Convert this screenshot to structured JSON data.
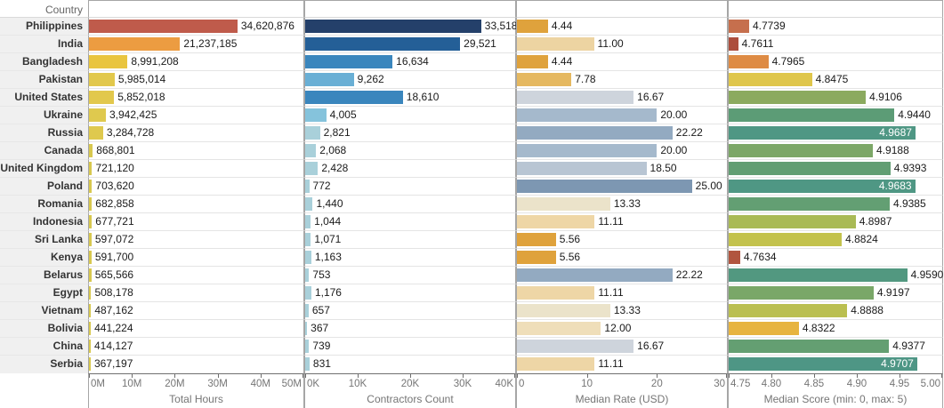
{
  "header": {
    "country_label": "Country"
  },
  "chart_data": {
    "type": "bar",
    "orientation": "horizontal",
    "grid": false,
    "legend": "none",
    "categories": [
      "Philippines",
      "India",
      "Bangladesh",
      "Pakistan",
      "United States",
      "Ukraine",
      "Russia",
      "Canada",
      "United Kingdom",
      "Poland",
      "Romania",
      "Indonesia",
      "Sri Lanka",
      "Kenya",
      "Belarus",
      "Egypt",
      "Vietnam",
      "Bolivia",
      "China",
      "Serbia"
    ],
    "series": [
      {
        "key": "total-hours",
        "name": "Total Hours",
        "axis_title": "Total Hours",
        "axis": {
          "min": 0,
          "max": 50000000,
          "ticks": [
            "0M",
            "10M",
            "20M",
            "30M",
            "40M",
            "50M"
          ]
        },
        "values": [
          34620876,
          21237185,
          8991208,
          5985014,
          5852018,
          3942425,
          3284728,
          868801,
          721120,
          703620,
          682858,
          677721,
          597072,
          591700,
          565566,
          508178,
          487162,
          441224,
          414127,
          367197
        ],
        "labels": [
          "34,620,876",
          "21,237,185",
          "8,991,208",
          "5,985,014",
          "5,852,018",
          "3,942,425",
          "3,284,728",
          "868,801",
          "721,120",
          "703,620",
          "682,858",
          "677,721",
          "597,072",
          "591,700",
          "565,566",
          "508,178",
          "487,162",
          "441,224",
          "414,127",
          "367,197"
        ],
        "colors": [
          "#BF5B4B",
          "#EC9C41",
          "#E9C53F",
          "#E2C84C",
          "#E2C84C",
          "#DFC94E",
          "#DFC94E",
          "#D8C84F",
          "#D8C84F",
          "#D8C84F",
          "#D8C84F",
          "#D8C84F",
          "#D8C84F",
          "#D8C84F",
          "#D8C84F",
          "#D8C84F",
          "#D8C84F",
          "#D8C84F",
          "#D8C84F",
          "#D8C84F"
        ],
        "label_inside": [
          false,
          false,
          false,
          false,
          false,
          false,
          false,
          false,
          false,
          false,
          false,
          false,
          false,
          false,
          false,
          false,
          false,
          false,
          false,
          false
        ]
      },
      {
        "key": "contractors-count",
        "name": "Contractors Count",
        "axis_title": "Contractors Count",
        "axis": {
          "min": 0,
          "max": 40000,
          "ticks": [
            "0K",
            "10K",
            "20K",
            "30K",
            "40K"
          ]
        },
        "values": [
          33518,
          29521,
          16634,
          9262,
          18610,
          4005,
          2821,
          2068,
          2428,
          772,
          1440,
          1044,
          1071,
          1163,
          753,
          1176,
          657,
          367,
          739,
          831
        ],
        "labels": [
          "33,518",
          "29,521",
          "16,634",
          "9,262",
          "18,610",
          "4,005",
          "2,821",
          "2,068",
          "2,428",
          "772",
          "1,440",
          "1,044",
          "1,071",
          "1,163",
          "753",
          "1,176",
          "657",
          "367",
          "739",
          "831"
        ],
        "colors": [
          "#24406A",
          "#245F97",
          "#3A86BD",
          "#69AFD5",
          "#3A86BD",
          "#85C3DC",
          "#A9D0DA",
          "#A9D0DA",
          "#A9D0DA",
          "#A9D0DA",
          "#A9D0DA",
          "#A9D0DA",
          "#A9D0DA",
          "#A9D0DA",
          "#A9D0DA",
          "#A9D0DA",
          "#A9D0DA",
          "#A9D0DA",
          "#A9D0DA",
          "#A9D0DA"
        ],
        "label_inside": [
          false,
          false,
          false,
          false,
          false,
          false,
          false,
          false,
          false,
          false,
          false,
          false,
          false,
          false,
          false,
          false,
          false,
          false,
          false,
          false
        ]
      },
      {
        "key": "median-rate",
        "name": "Median Rate (USD)",
        "axis_title": "Median Rate (USD)",
        "axis": {
          "min": 0,
          "max": 30,
          "ticks": [
            "0",
            "10",
            "20",
            "30"
          ]
        },
        "values": [
          4.44,
          11.0,
          4.44,
          7.78,
          16.67,
          20.0,
          22.22,
          20.0,
          18.5,
          25.0,
          13.33,
          11.11,
          5.56,
          5.56,
          22.22,
          11.11,
          13.33,
          12.0,
          16.67,
          11.11
        ],
        "labels": [
          "4.44",
          "11.00",
          "4.44",
          "7.78",
          "16.67",
          "20.00",
          "22.22",
          "20.00",
          "18.50",
          "25.00",
          "13.33",
          "11.11",
          "5.56",
          "5.56",
          "22.22",
          "11.11",
          "13.33",
          "12.00",
          "16.67",
          "11.11"
        ],
        "colors": [
          "#DFA23C",
          "#EDD4A2",
          "#DFA23C",
          "#E5B860",
          "#CED4DC",
          "#A5B9CC",
          "#93AAC1",
          "#A5B9CC",
          "#B8C5D3",
          "#7D97B2",
          "#EBE3CA",
          "#EED6A6",
          "#DFA23C",
          "#DFA23C",
          "#93AAC1",
          "#EED6A6",
          "#EBE3CA",
          "#EFDEB9",
          "#CED4DC",
          "#EED6A6"
        ],
        "label_inside": [
          false,
          false,
          false,
          false,
          false,
          false,
          false,
          false,
          false,
          false,
          false,
          false,
          false,
          false,
          false,
          false,
          false,
          false,
          false,
          false
        ]
      },
      {
        "key": "median-score",
        "name": "Median Score",
        "axis_title": "Median Score (min: 0, max: 5)",
        "axis": {
          "min": 4.75,
          "max": 5.0,
          "ticks": [
            "4.75",
            "4.80",
            "4.85",
            "4.90",
            "4.95",
            "5.00"
          ]
        },
        "values": [
          4.7739,
          4.7611,
          4.7965,
          4.8475,
          4.9106,
          4.944,
          4.9687,
          4.9188,
          4.9393,
          4.9683,
          4.9385,
          4.8987,
          4.8824,
          4.7634,
          4.959,
          4.9197,
          4.8888,
          4.8322,
          4.9377,
          4.9707
        ],
        "labels": [
          "4.7739",
          "4.7611",
          "4.7965",
          "4.8475",
          "4.9106",
          "4.9440",
          "4.9687",
          "4.9188",
          "4.9393",
          "4.9683",
          "4.9385",
          "4.8987",
          "4.8824",
          "4.7634",
          "4.9590",
          "4.9197",
          "4.8888",
          "4.8322",
          "4.9377",
          "4.9707"
        ],
        "colors": [
          "#C66F4D",
          "#AC4E3D",
          "#DE8B44",
          "#DFC64B",
          "#8BAA5F",
          "#5C9C76",
          "#4F9784",
          "#7CA767",
          "#629E73",
          "#4F9784",
          "#639F73",
          "#A9BA55",
          "#C3C24D",
          "#B1553F",
          "#529880",
          "#7AA768",
          "#BABF50",
          "#E7B43F",
          "#649F72",
          "#4E9685"
        ],
        "label_inside": [
          false,
          false,
          false,
          false,
          false,
          false,
          true,
          false,
          false,
          true,
          false,
          false,
          false,
          false,
          false,
          false,
          false,
          false,
          false,
          true
        ]
      }
    ]
  }
}
